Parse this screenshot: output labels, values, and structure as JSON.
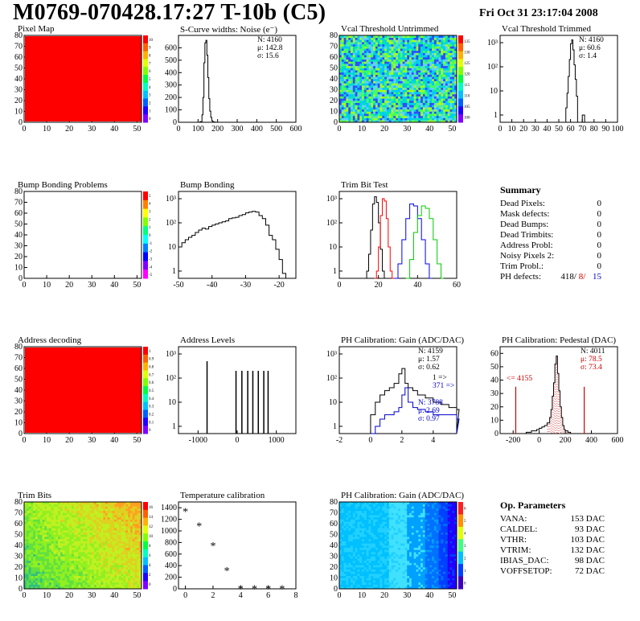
{
  "header": {
    "title": "M0769-070428.17:27 T-10b (C5)",
    "datetime": "Fri Oct 31 23:17:04 2008"
  },
  "summary": {
    "title": "Summary",
    "rows": [
      {
        "label": "Dead Pixels:",
        "value": "0"
      },
      {
        "label": "Mask defects:",
        "value": "0"
      },
      {
        "label": "Dead Bumps:",
        "value": "0"
      },
      {
        "label": "Dead Trimbits:",
        "value": "0"
      },
      {
        "label": "Address Probl:",
        "value": "0"
      },
      {
        "label": "Noisy Pixels 2:",
        "value": "0"
      },
      {
        "label": "Trim Probl.:",
        "value": "0"
      }
    ],
    "ph_defects": {
      "label": "PH defects:",
      "v1": "418/",
      "v2": "8/",
      "v3": "15",
      "c2": "#cc0000",
      "c3": "#0000cc"
    }
  },
  "op_parameters": {
    "title": "Op. Parameters",
    "rows": [
      {
        "label": "VANA:",
        "value": "153 DAC"
      },
      {
        "label": "CALDEL:",
        "value": "93 DAC"
      },
      {
        "label": "VTHR:",
        "value": "103 DAC"
      },
      {
        "label": "VTRIM:",
        "value": "132 DAC"
      },
      {
        "label": "IBIAS_DAC:",
        "value": "98 DAC"
      },
      {
        "label": "VOFFSETOP:",
        "value": "72 DAC"
      }
    ]
  },
  "colors": {
    "red": "#ff0000",
    "black": "#000000",
    "blue": "#0000cc",
    "green": "#00cc00",
    "darkred": "#cc0000"
  },
  "chart_data": [
    {
      "id": "pixel-map",
      "type": "heatmap",
      "title": "Pixel Map",
      "xlim": [
        0,
        52
      ],
      "ylim": [
        0,
        80
      ],
      "xticks": [
        0,
        10,
        20,
        30,
        40,
        50
      ],
      "yticks": [
        0,
        10,
        20,
        30,
        40,
        50,
        60,
        70,
        80
      ],
      "fill": "uniform-max",
      "palette": [
        "#ff0000"
      ],
      "zticks": [
        "10",
        "9",
        "8",
        "7",
        "6",
        "5",
        "4",
        "3",
        "2",
        "1",
        "0"
      ]
    },
    {
      "id": "scurve",
      "type": "histogram",
      "title": "S-Curve widths: Noise (e⁻)",
      "xlim": [
        0,
        600
      ],
      "ylim": [
        0,
        700
      ],
      "xticks": [
        0,
        100,
        200,
        300,
        400,
        500,
        600
      ],
      "yticks": [
        0,
        100,
        200,
        300,
        400,
        500,
        600
      ],
      "x": [
        100,
        110,
        120,
        125,
        130,
        135,
        140,
        145,
        150,
        155,
        160,
        165,
        170,
        175,
        180,
        190
      ],
      "y": [
        0,
        5,
        60,
        200,
        480,
        640,
        660,
        540,
        360,
        190,
        90,
        40,
        12,
        5,
        2,
        0
      ],
      "stats": [
        "N: 4160",
        "μ: 142.8",
        "σ: 15.6"
      ]
    },
    {
      "id": "vcal-untrimmed",
      "type": "heatmap",
      "title": "Vcal Threshold Untrimmed",
      "xlim": [
        0,
        52
      ],
      "ylim": [
        0,
        80
      ],
      "xticks": [
        0,
        10,
        20,
        30,
        40,
        50
      ],
      "yticks": [
        0,
        10,
        20,
        30,
        40,
        50,
        60,
        70,
        80
      ],
      "fill": "noise",
      "palette": [
        "#00c8ff",
        "#00e0c0",
        "#40ff60",
        "#a0ff20",
        "#2a50ff",
        "#60d0ff"
      ],
      "zticks": [
        "135",
        "130",
        "125",
        "120",
        "115",
        "110",
        "105",
        "100"
      ]
    },
    {
      "id": "vcal-trimmed",
      "type": "histogram",
      "title": "Vcal Threshold Trimmed",
      "log": true,
      "xlim": [
        0,
        100
      ],
      "ylim": [
        0.5,
        2000
      ],
      "xticks": [
        0,
        10,
        20,
        30,
        40,
        50,
        60,
        70,
        80,
        90,
        100
      ],
      "yticks": [
        "1",
        "10",
        "10²",
        "10³"
      ],
      "x": [
        55,
        56,
        57,
        58,
        59,
        60,
        61,
        62,
        63,
        64,
        65,
        66,
        70,
        71,
        72
      ],
      "y": [
        0.5,
        2,
        8,
        40,
        200,
        900,
        1300,
        500,
        120,
        30,
        6,
        0.5,
        1,
        1,
        0.5
      ],
      "stats": [
        "N: 4160",
        "μ: 60.6",
        "σ: 1.4"
      ]
    },
    {
      "id": "bump-problems",
      "type": "heatmap",
      "title": "Bump Bonding Problems",
      "xlim": [
        0,
        52
      ],
      "ylim": [
        0,
        80
      ],
      "xticks": [
        0,
        10,
        20,
        30,
        40,
        50
      ],
      "yticks": [
        0,
        10,
        20,
        30,
        40,
        50,
        60,
        70,
        80
      ],
      "fill": "empty",
      "zticks": [
        "5",
        "4",
        "3",
        "2",
        "1",
        "0",
        "-1",
        "-2",
        "-3",
        "-4",
        "-5"
      ]
    },
    {
      "id": "bump-bonding",
      "type": "histogram",
      "title": "Bump Bonding",
      "log": true,
      "xlim": [
        -50,
        -15
      ],
      "ylim": [
        0.5,
        2000
      ],
      "xticks": [
        -50,
        -40,
        -30,
        -20
      ],
      "yticks": [
        "1",
        "10",
        "10²",
        "10³"
      ],
      "x": [
        -50,
        -49,
        -48,
        -47,
        -46,
        -45,
        -44,
        -43,
        -42,
        -41,
        -40,
        -39,
        -38,
        -37,
        -36,
        -35,
        -34,
        -33,
        -32,
        -31,
        -30,
        -29,
        -28,
        -27,
        -26,
        -25,
        -24,
        -23,
        -22,
        -21,
        -20,
        -19,
        -18
      ],
      "y": [
        10,
        15,
        20,
        25,
        30,
        40,
        50,
        60,
        55,
        70,
        80,
        90,
        100,
        110,
        120,
        150,
        160,
        170,
        200,
        220,
        260,
        280,
        300,
        280,
        200,
        150,
        80,
        30,
        20,
        8,
        3,
        0.8,
        0.5
      ]
    },
    {
      "id": "trim-bit-test",
      "type": "histogram-multi",
      "title": "Trim Bit Test",
      "log": true,
      "xlim": [
        0,
        60
      ],
      "ylim": [
        0.5,
        2000
      ],
      "xticks": [
        0,
        20,
        40,
        60
      ],
      "yticks": [
        "1",
        "10",
        "10²",
        "10³"
      ],
      "series": [
        {
          "color": "#000000",
          "x": [
            13,
            14,
            15,
            16,
            17,
            18,
            19,
            20,
            21,
            22,
            23
          ],
          "y": [
            0.5,
            1,
            5,
            50,
            600,
            1200,
            700,
            100,
            8,
            1,
            0.5
          ]
        },
        {
          "color": "#ff0000",
          "x": [
            18,
            19,
            20,
            21,
            22,
            23,
            24,
            25,
            26,
            27
          ],
          "y": [
            0.5,
            1,
            10,
            200,
            1000,
            800,
            150,
            10,
            1,
            0.5
          ]
        },
        {
          "color": "#0000ff",
          "x": [
            28,
            30,
            32,
            34,
            36,
            38,
            40,
            42,
            44,
            46
          ],
          "y": [
            0.5,
            2,
            20,
            150,
            600,
            500,
            150,
            20,
            2,
            0.5
          ]
        },
        {
          "color": "#00cc00",
          "x": [
            34,
            36,
            38,
            40,
            42,
            44,
            46,
            48,
            50,
            52
          ],
          "y": [
            0.5,
            3,
            40,
            200,
            500,
            400,
            150,
            20,
            2,
            0.5
          ]
        }
      ]
    },
    {
      "id": "address-decoding",
      "type": "heatmap",
      "title": "Address decoding",
      "xlim": [
        0,
        52
      ],
      "ylim": [
        0,
        80
      ],
      "xticks": [
        0,
        10,
        20,
        30,
        40,
        50
      ],
      "yticks": [
        0,
        10,
        20,
        30,
        40,
        50,
        60,
        70,
        80
      ],
      "fill": "uniform-max",
      "palette": [
        "#ff0000"
      ],
      "zticks": [
        "1",
        "0.9",
        "0.8",
        "0.7",
        "0.6",
        "0.5",
        "0.4",
        "0.3",
        "0.2",
        "0.1",
        "0"
      ]
    },
    {
      "id": "address-levels",
      "type": "spikes",
      "title": "Address Levels",
      "log": true,
      "xlim": [
        -1500,
        1500
      ],
      "ylim": [
        0.5,
        2000
      ],
      "xticks": [
        -1000,
        0,
        1000
      ],
      "yticks": [
        "1",
        "10",
        "10²",
        "10³"
      ],
      "x": [
        -770,
        -30,
        120,
        270,
        400,
        540,
        680,
        790
      ],
      "y": [
        500,
        200,
        200,
        200,
        200,
        200,
        200,
        200
      ]
    },
    {
      "id": "ph-gain",
      "type": "histogram-multi",
      "title": "PH Calibration: Gain (ADC/DAC)",
      "log": true,
      "xlim": [
        -2,
        5.5
      ],
      "ylim": [
        0.5,
        2000
      ],
      "xticks": [
        -2,
        0,
        2,
        4
      ],
      "yticks": [
        "1",
        "10",
        "10²",
        "10³"
      ],
      "series": [
        {
          "color": "#000000",
          "x": [
            -0.2,
            0,
            0.3,
            0.6,
            0.9,
            1.2,
            1.5,
            1.8,
            2.0,
            2.2,
            2.4,
            2.7,
            3.0,
            3.5,
            4.0,
            4.5,
            5.0,
            5.5
          ],
          "y": [
            0.5,
            3,
            10,
            20,
            30,
            40,
            60,
            150,
            250,
            60,
            40,
            30,
            20,
            15,
            10,
            8,
            6,
            5
          ]
        },
        {
          "color": "#0000cc",
          "x": [
            0,
            0.3,
            0.6,
            0.9,
            1.2,
            1.5,
            1.8,
            2.0,
            2.2,
            2.4,
            2.7,
            3.0,
            3.5,
            4.0,
            4.5,
            5.0,
            5.5
          ],
          "y": [
            0.5,
            1,
            2,
            3,
            3,
            4,
            6,
            20,
            40,
            10,
            6,
            5,
            4,
            3,
            3,
            3,
            2
          ]
        }
      ],
      "stats": [
        "N: 4159",
        "μ: 1.57",
        "σ: 0.62",
        "1 =>",
        "371 =>"
      ],
      "stats2": [
        "N: 3788",
        "μ: 2.69",
        "σ: 0.97"
      ]
    },
    {
      "id": "ph-pedestal",
      "type": "histogram",
      "title": "PH Calibration: Pedestal (DAC)",
      "xlim": [
        -300,
        600
      ],
      "ylim": [
        0,
        65
      ],
      "xticks": [
        -200,
        0,
        200,
        400,
        600
      ],
      "yticks": [
        0,
        10,
        20,
        30,
        40,
        50,
        60
      ],
      "x": [
        -100,
        -60,
        -20,
        0,
        20,
        40,
        60,
        80,
        90,
        100,
        110,
        120,
        130,
        140,
        150,
        160,
        170,
        180,
        190,
        200,
        220,
        240
      ],
      "y": [
        1,
        2,
        3,
        4,
        5,
        6,
        8,
        12,
        18,
        28,
        38,
        52,
        58,
        45,
        32,
        20,
        12,
        6,
        3,
        2,
        1,
        0
      ],
      "markers": [
        {
          "x": -180,
          "height": 35
        },
        {
          "x": 345,
          "height": 35
        }
      ],
      "stats": [
        "N: 4011",
        "μ: 78.5",
        "σ: 73.4"
      ],
      "label_left": "<= 4155"
    },
    {
      "id": "trim-bits",
      "type": "heatmap",
      "title": "Trim Bits",
      "xlim": [
        0,
        52
      ],
      "ylim": [
        0,
        80
      ],
      "xticks": [
        0,
        10,
        20,
        30,
        40,
        50
      ],
      "yticks": [
        0,
        10,
        20,
        30,
        40,
        50,
        60,
        70,
        80
      ],
      "fill": "gradient-noise",
      "palette": [
        "#30c080",
        "#60e040",
        "#90f020",
        "#c0f020",
        "#e0d020",
        "#ffa020"
      ],
      "zticks": [
        "16",
        "14",
        "12",
        "10",
        "8",
        "6",
        "4",
        "2",
        "0"
      ]
    },
    {
      "id": "temp-cal",
      "type": "scatter",
      "title": "Temperature calibration",
      "xlim": [
        -0.5,
        8
      ],
      "ylim": [
        0,
        1500
      ],
      "xticks": [
        0,
        2,
        4,
        6,
        8
      ],
      "yticks": [
        0,
        200,
        400,
        600,
        800,
        1000,
        1200,
        1400
      ],
      "x": [
        0,
        1,
        2,
        3,
        4,
        5,
        6,
        7
      ],
      "y": [
        1340,
        1090,
        750,
        320,
        10,
        10,
        10,
        10
      ]
    },
    {
      "id": "ph-gain-map",
      "type": "heatmap",
      "title": "PH Calibration: Gain (ADC/DAC)",
      "xlim": [
        0,
        52
      ],
      "ylim": [
        0,
        80
      ],
      "xticks": [
        0,
        10,
        20,
        30,
        40,
        50
      ],
      "yticks": [
        0,
        10,
        20,
        30,
        40,
        50,
        60,
        70,
        80
      ],
      "fill": "columns",
      "palette": [
        "#00c0ff",
        "#20d0ff",
        "#40e0ff",
        "#00a0ff",
        "#0070ff",
        "#0040ff",
        "#2000ff"
      ],
      "zticks": [
        "6",
        "5",
        "4",
        "3",
        "2",
        "1",
        "0"
      ]
    }
  ]
}
